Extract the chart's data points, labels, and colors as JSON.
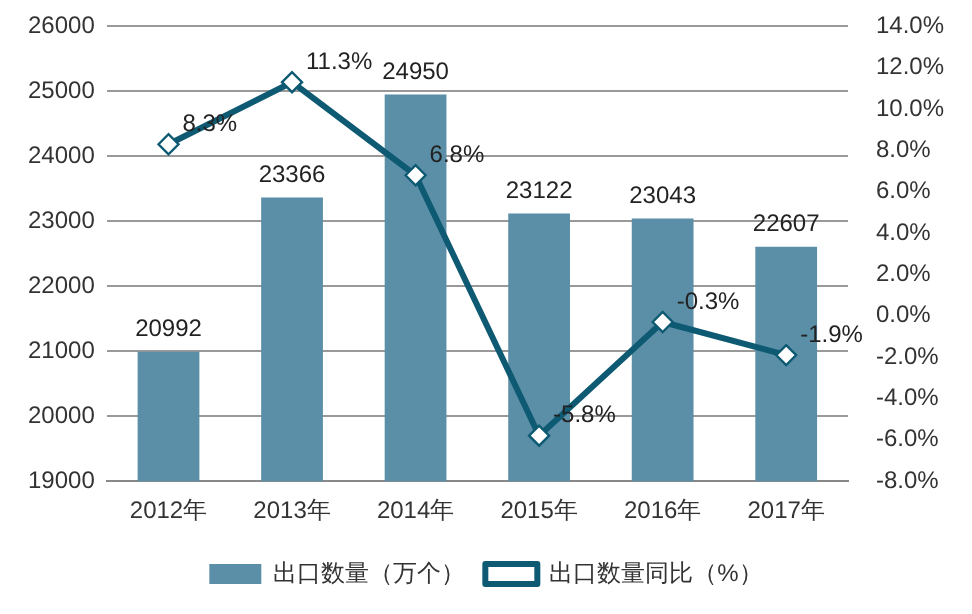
{
  "chart_data": {
    "type": "bar",
    "categories": [
      "2012年",
      "2013年",
      "2014年",
      "2015年",
      "2016年",
      "2017年"
    ],
    "series": [
      {
        "name": "出口数量（万个）",
        "color": "#5b8fa8",
        "values": [
          20992,
          23366,
          24950,
          23122,
          23043,
          22607
        ],
        "value_labels": [
          "20992",
          "23366",
          "24950",
          "23122",
          "23043",
          "22607"
        ]
      },
      {
        "name": "出口数量同比（%）",
        "type": "line",
        "axis": "y2",
        "color": "#0e5a73",
        "marker": "diamond",
        "values": [
          8.3,
          11.3,
          6.8,
          -5.8,
          -0.3,
          -1.9
        ],
        "value_labels": [
          "8.3%",
          "11.3%",
          "6.8%",
          "-5.8%",
          "-0.3%",
          "-1.9%"
        ]
      }
    ],
    "ylim": [
      19000,
      26000
    ],
    "yticks": [
      19000,
      20000,
      21000,
      22000,
      23000,
      24000,
      25000,
      26000
    ],
    "y2lim": [
      -8,
      14
    ],
    "y2ticks": [
      {
        "value": -8,
        "label": "-8.0%"
      },
      {
        "value": -6,
        "label": "-6.0%"
      },
      {
        "value": -4,
        "label": "-4.0%"
      },
      {
        "value": -2,
        "label": "-2.0%"
      },
      {
        "value": 0,
        "label": "0.0%"
      },
      {
        "value": 2,
        "label": "2.0%"
      },
      {
        "value": 4,
        "label": "4.0%"
      },
      {
        "value": 6,
        "label": "6.0%"
      },
      {
        "value": 8,
        "label": "8.0%"
      },
      {
        "value": 10,
        "label": "10.0%"
      },
      {
        "value": 12,
        "label": "12.0%"
      },
      {
        "value": 14,
        "label": "14.0%"
      }
    ],
    "grid": "y",
    "legend": "bottom"
  }
}
